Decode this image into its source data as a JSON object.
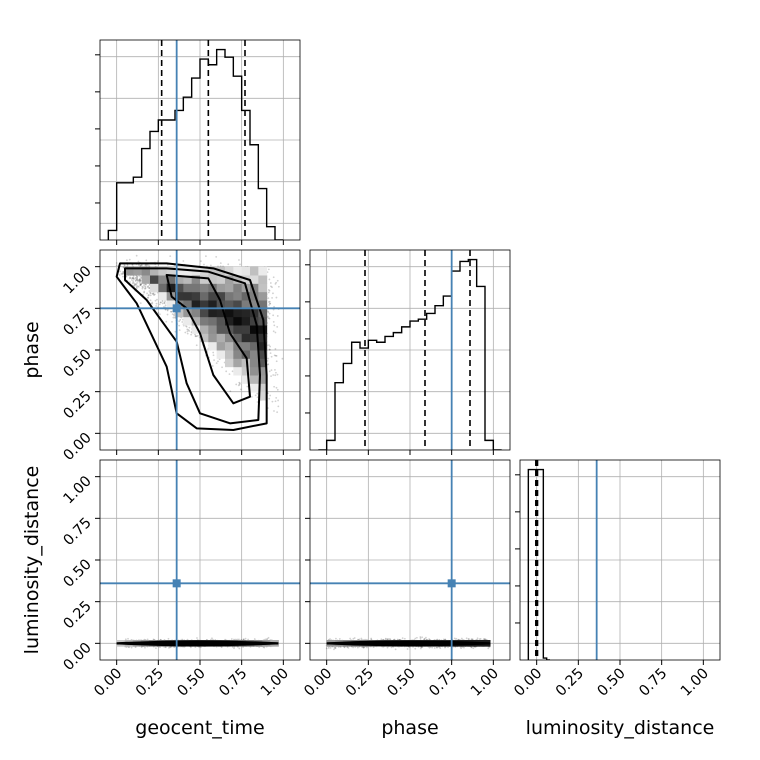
{
  "chart_data": {
    "type": "corner",
    "parameters": [
      "geocent_time",
      "phase",
      "luminosity_distance"
    ],
    "truths": {
      "geocent_time": 0.36,
      "phase": 0.75,
      "luminosity_distance": 0.36
    },
    "truth_color": "#4682b4",
    "axis_range": [
      -0.1,
      1.1
    ],
    "ticks": [
      0.0,
      0.25,
      0.5,
      0.75,
      1.0
    ],
    "tick_labels": [
      "0.00",
      "0.25",
      "0.50",
      "0.75",
      "1.00"
    ],
    "grid": true,
    "diagonals": [
      {
        "param": "geocent_time",
        "type": "step-histogram",
        "bin_edges": [
          -0.05,
          0.0,
          0.05,
          0.1,
          0.15,
          0.2,
          0.25,
          0.3,
          0.35,
          0.4,
          0.45,
          0.5,
          0.55,
          0.6,
          0.65,
          0.7,
          0.75,
          0.8,
          0.85,
          0.9,
          0.95,
          1.0
        ],
        "counts": [
          0.05,
          0.3,
          0.3,
          0.33,
          0.48,
          0.57,
          0.63,
          0.63,
          0.68,
          0.75,
          0.85,
          0.95,
          0.92,
          1.0,
          0.96,
          0.86,
          0.68,
          0.5,
          0.27,
          0.07,
          0.0
        ],
        "quantiles": [
          0.27,
          0.55,
          0.77
        ]
      },
      {
        "param": "phase",
        "type": "step-histogram",
        "bin_edges": [
          -0.05,
          0.0,
          0.05,
          0.1,
          0.15,
          0.2,
          0.25,
          0.3,
          0.35,
          0.4,
          0.45,
          0.5,
          0.55,
          0.6,
          0.65,
          0.7,
          0.75,
          0.8,
          0.85,
          0.9,
          0.95,
          1.0,
          1.05
        ],
        "counts": [
          0.0,
          0.05,
          0.35,
          0.45,
          0.56,
          0.53,
          0.57,
          0.56,
          0.59,
          0.61,
          0.64,
          0.67,
          0.68,
          0.71,
          0.75,
          0.8,
          0.93,
          0.98,
          0.99,
          0.85,
          0.05,
          0.0
        ],
        "quantiles": [
          0.23,
          0.59,
          0.86
        ]
      },
      {
        "param": "luminosity_distance",
        "type": "step-histogram",
        "bin_edges": [
          -0.05,
          0.0,
          0.02,
          0.04,
          0.06,
          0.08
        ],
        "counts": [
          1.0,
          1.0,
          1.0,
          0.01,
          0.0
        ],
        "quantiles": [
          -0.005,
          0.0,
          0.005
        ]
      }
    ],
    "joint_2d": [
      {
        "x": "geocent_time",
        "y": "phase",
        "type": "hist2d-contour",
        "contour_levels": 3
      },
      {
        "x": "geocent_time",
        "y": "luminosity_distance",
        "type": "hist2d-contour",
        "contour_levels": 3
      },
      {
        "x": "phase",
        "y": "luminosity_distance",
        "type": "hist2d-contour",
        "contour_levels": 3
      }
    ]
  }
}
